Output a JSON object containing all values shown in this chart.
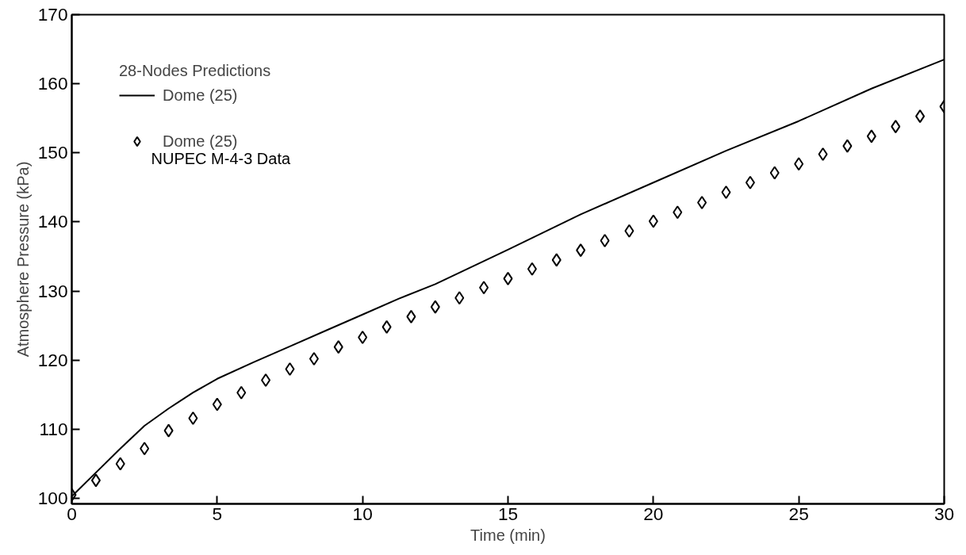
{
  "chart_data": {
    "type": "line",
    "xlabel": "Time (min)",
    "ylabel": "Atmosphere Pressure (kPa)",
    "legend_title": "28-Nodes Predictions",
    "legend": "top left",
    "grid": false,
    "xlim": [
      0,
      30
    ],
    "xticks": [
      0,
      5,
      10,
      15,
      20,
      25,
      30
    ],
    "ylim": [
      99.2,
      170
    ],
    "yticks": [
      100,
      110,
      120,
      130,
      140,
      150,
      160,
      170
    ],
    "annotations": [
      "NUPEC M-4-3 Data"
    ],
    "series": [
      {
        "name": "Dome (25)",
        "type": "line",
        "color": "#000000",
        "line_style": "solid",
        "marker": "none",
        "x": [
          0,
          0.8,
          1.67,
          2.5,
          3.33,
          4.17,
          5,
          6.25,
          7.5,
          8.75,
          10,
          11.25,
          12.5,
          15,
          17.5,
          20,
          22.5,
          25,
          27.5,
          30
        ],
        "values": [
          100.3,
          103.6,
          107.2,
          110.5,
          113.0,
          115.3,
          117.3,
          119.7,
          122.0,
          124.3,
          126.6,
          128.9,
          131.0,
          136.0,
          141.1,
          145.7,
          150.3,
          154.6,
          159.3,
          163.5
        ]
      },
      {
        "name": "Dome (25)",
        "type": "scatter",
        "color": "#000000",
        "marker": "diamond",
        "x": [
          0,
          0.83,
          1.67,
          2.5,
          3.33,
          4.17,
          5,
          5.83,
          6.67,
          7.5,
          8.33,
          9.17,
          10,
          10.83,
          11.67,
          12.5,
          13.33,
          14.17,
          15,
          15.83,
          16.67,
          17.5,
          18.33,
          19.17,
          20,
          20.83,
          21.67,
          22.5,
          23.33,
          24.17,
          25,
          25.83,
          26.67,
          27.5,
          28.33,
          29.17,
          30
        ],
        "values": [
          100.5,
          102.6,
          105.0,
          107.2,
          109.8,
          111.6,
          113.6,
          115.3,
          117.1,
          118.7,
          120.2,
          121.9,
          123.3,
          124.8,
          126.3,
          127.7,
          129.0,
          130.5,
          131.8,
          133.2,
          134.5,
          135.9,
          137.3,
          138.7,
          140.1,
          141.4,
          142.8,
          144.3,
          145.7,
          147.1,
          148.4,
          149.8,
          151.0,
          152.4,
          153.8,
          155.3,
          156.7
        ]
      }
    ]
  }
}
